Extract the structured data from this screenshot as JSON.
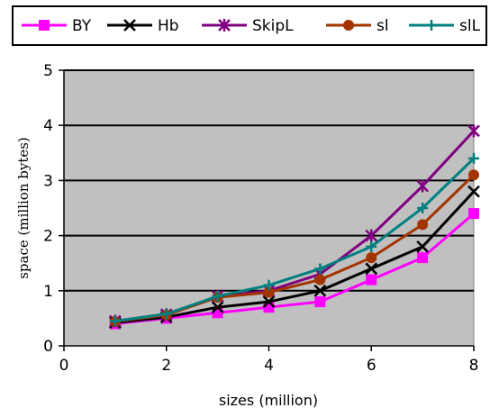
{
  "chart_data": {
    "type": "line",
    "title": "",
    "xlabel": "sizes (million)",
    "ylabel": "space (million bytes)",
    "xlim": [
      0,
      8
    ],
    "ylim": [
      0,
      5
    ],
    "xticks": [
      "0",
      "2",
      "4",
      "6",
      "8"
    ],
    "yticks": [
      "0",
      "1",
      "2",
      "3",
      "4",
      "5"
    ],
    "grid": "horizontal",
    "legend_position": "top",
    "x": [
      1,
      2,
      3,
      4,
      5,
      6,
      7,
      8
    ],
    "series": [
      {
        "name": "BY",
        "color": "#ff00ff",
        "marker": "square",
        "values": [
          0.4,
          0.5,
          0.6,
          0.7,
          0.8,
          1.2,
          1.6,
          2.4
        ]
      },
      {
        "name": "Hb",
        "color": "#000000",
        "marker": "x",
        "values": [
          0.42,
          0.52,
          0.7,
          0.8,
          1.0,
          1.4,
          1.8,
          2.8
        ]
      },
      {
        "name": "SkipL",
        "color": "#800080",
        "marker": "star",
        "values": [
          0.45,
          0.57,
          0.9,
          1.0,
          1.3,
          2.0,
          2.9,
          3.9
        ]
      },
      {
        "name": "sl",
        "color": "#a33400",
        "marker": "circle",
        "values": [
          0.44,
          0.56,
          0.88,
          0.97,
          1.2,
          1.6,
          2.2,
          3.1
        ]
      },
      {
        "name": "slL",
        "color": "#008080",
        "marker": "plus",
        "values": [
          0.45,
          0.58,
          0.9,
          1.1,
          1.4,
          1.8,
          2.5,
          3.4
        ]
      }
    ]
  }
}
